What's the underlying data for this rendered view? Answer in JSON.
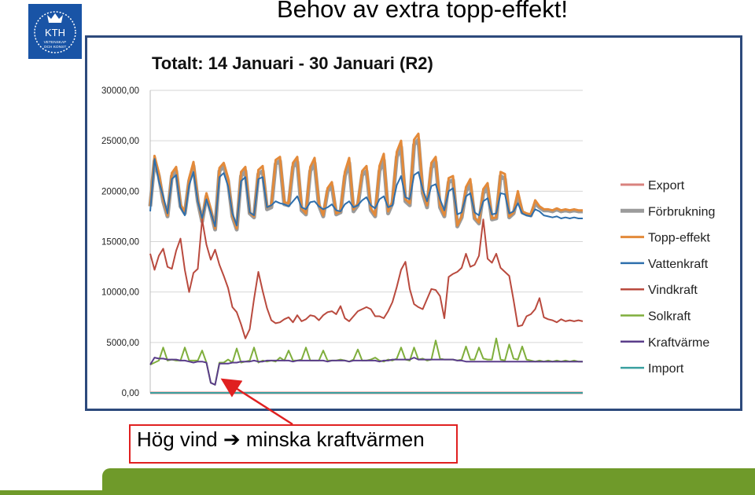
{
  "header": {
    "title": "Behov av extra topp-effekt!",
    "logo_text": "KTH",
    "logo_subtext": [
      "VETENSKAP",
      "OCH KONST"
    ]
  },
  "callout": {
    "text_before": "Hög vind",
    "arrow_glyph": "➔",
    "text_after": "minska kraftvärmen"
  },
  "colors": {
    "brand_blue": "#1954a6",
    "frame_border": "#2d4a7c",
    "callout_border": "#e02020",
    "footer_green": "#6f9a2a"
  },
  "chart_data": {
    "type": "line",
    "title": "Totalt: 14 Januari  -  30 Januari (R2)",
    "xlabel": "",
    "ylabel": "",
    "ylim": [
      0,
      30000
    ],
    "yticks": [
      "0,00",
      "5000,00",
      "10000,00",
      "15000,00",
      "20000,00",
      "25000,00",
      "30000,00"
    ],
    "grid": true,
    "legend_position": "right",
    "x": [
      0,
      1,
      2,
      3,
      4,
      5,
      6,
      7,
      8,
      9,
      10,
      11,
      12,
      13,
      14,
      15,
      16,
      17,
      18,
      19,
      20,
      21,
      22,
      23,
      24,
      25,
      26,
      27,
      28,
      29,
      30,
      31,
      32,
      33,
      34,
      35,
      36,
      37,
      38,
      39,
      40,
      41,
      42,
      43,
      44,
      45,
      46,
      47,
      48,
      49,
      50,
      51,
      52,
      53,
      54,
      55,
      56,
      57,
      58,
      59,
      60,
      61,
      62,
      63,
      64,
      65,
      66,
      67,
      68,
      69,
      70,
      71,
      72,
      73,
      74,
      75,
      76,
      77,
      78,
      79,
      80,
      81,
      82,
      83,
      84,
      85,
      86,
      87,
      88,
      89,
      90,
      91,
      92,
      93,
      94,
      95,
      96,
      97,
      98,
      99,
      100
    ],
    "series": [
      {
        "name": "Export",
        "color": "#d9827e",
        "values": [
          0,
          0,
          0,
          0,
          0,
          0,
          0,
          0,
          0,
          0,
          0,
          0,
          0,
          0,
          0,
          0,
          0,
          0,
          0,
          0,
          0,
          0,
          0,
          0,
          0,
          0,
          0,
          0,
          0,
          0,
          0,
          0,
          0,
          0,
          0,
          0,
          0,
          0,
          0,
          0,
          0,
          0,
          0,
          0,
          0,
          0,
          0,
          0,
          0,
          0,
          0,
          0,
          0,
          0,
          0,
          0,
          0,
          0,
          0,
          0,
          0,
          0,
          0,
          0,
          0,
          0,
          0,
          0,
          0,
          0,
          0,
          0,
          0,
          0,
          0,
          0,
          0,
          0,
          0,
          0,
          0,
          0,
          0,
          0,
          0,
          0,
          0,
          0,
          0,
          0,
          0,
          0,
          0,
          0,
          0,
          0,
          0,
          0,
          0,
          0,
          0
        ]
      },
      {
        "name": "Förbrukning",
        "color": "#9b9b9b",
        "values": [
          18500,
          23000,
          21500,
          19000,
          17500,
          21500,
          22000,
          18500,
          17800,
          21000,
          22500,
          19000,
          17000,
          19500,
          18000,
          16200,
          22000,
          22500,
          21000,
          17500,
          16200,
          21500,
          22000,
          17800,
          17400,
          21700,
          22000,
          18200,
          18400,
          22700,
          23000,
          18700,
          18600,
          22400,
          22900,
          18100,
          17700,
          22000,
          22800,
          18600,
          17500,
          20000,
          20500,
          17700,
          17900,
          21500,
          22800,
          18000,
          18600,
          21600,
          22000,
          18100,
          17500,
          22000,
          23100,
          17800,
          18800,
          23400,
          24400,
          19000,
          18600,
          24600,
          25100,
          19800,
          18400,
          22300,
          22900,
          18400,
          17500,
          20900,
          21100,
          16500,
          17400,
          20000,
          20700,
          17300,
          16800,
          19800,
          20300,
          17200,
          17300,
          21500,
          21200,
          17400,
          17800,
          19600,
          17900,
          17700,
          17600,
          18800,
          18400,
          18100,
          18100,
          18000,
          18200,
          18000,
          18100,
          18000,
          18100,
          18000,
          18000
        ]
      },
      {
        "name": "Topp-effekt",
        "color": "#e38a3a",
        "values": [
          18500,
          23500,
          21800,
          19200,
          17600,
          21800,
          22400,
          18700,
          17900,
          21300,
          22900,
          19200,
          17100,
          19800,
          18200,
          16300,
          22300,
          22800,
          21300,
          17600,
          16300,
          21900,
          22400,
          17900,
          17500,
          22100,
          22500,
          18400,
          18600,
          23100,
          23400,
          18900,
          18800,
          22800,
          23400,
          18300,
          17800,
          22400,
          23300,
          18800,
          17600,
          20300,
          20900,
          17800,
          18000,
          21900,
          23300,
          18200,
          18800,
          22000,
          22500,
          18300,
          17600,
          22500,
          23700,
          18000,
          19000,
          23900,
          25000,
          19200,
          18800,
          25100,
          25700,
          20000,
          18600,
          22800,
          23400,
          18600,
          17600,
          21300,
          21500,
          16600,
          17500,
          20400,
          21200,
          17400,
          16900,
          20200,
          20800,
          17300,
          17400,
          21900,
          21700,
          17500,
          17900,
          20000,
          18000,
          17800,
          17700,
          19100,
          18500,
          18200,
          18200,
          18100,
          18300,
          18100,
          18200,
          18100,
          18200,
          18100,
          18100
        ]
      },
      {
        "name": "Vattenkraft",
        "color": "#2e6fad",
        "values": [
          18000,
          23200,
          21000,
          19500,
          17800,
          21200,
          21600,
          18400,
          17600,
          20600,
          21900,
          19000,
          17300,
          19200,
          17900,
          16500,
          21400,
          21800,
          20500,
          17800,
          16600,
          21000,
          21400,
          17900,
          17600,
          21200,
          21400,
          18400,
          18600,
          19000,
          18800,
          18700,
          18500,
          19000,
          19500,
          18400,
          18200,
          18900,
          19000,
          18500,
          18200,
          18400,
          18700,
          18100,
          18000,
          18700,
          19000,
          18400,
          18600,
          19100,
          19400,
          18600,
          18300,
          19200,
          19500,
          18400,
          18600,
          20600,
          21500,
          19400,
          19200,
          21600,
          21900,
          20200,
          19000,
          20500,
          20700,
          19200,
          18100,
          20000,
          20300,
          17700,
          17900,
          19500,
          19800,
          17900,
          17600,
          19000,
          19300,
          17700,
          17800,
          19800,
          19700,
          17800,
          18000,
          18800,
          17800,
          17600,
          17500,
          18200,
          18000,
          17600,
          17500,
          17400,
          17500,
          17300,
          17400,
          17300,
          17400,
          17300,
          17300
        ]
      },
      {
        "name": "Vindkraft",
        "color": "#b94a3e",
        "values": [
          13800,
          12200,
          13600,
          14300,
          12500,
          12300,
          14100,
          15300,
          12200,
          10000,
          11900,
          12300,
          17200,
          14700,
          13200,
          14200,
          12700,
          11600,
          10400,
          8500,
          8000,
          6800,
          5400,
          6300,
          9300,
          12000,
          10100,
          8400,
          7200,
          6900,
          7000,
          7300,
          7500,
          7000,
          7700,
          7100,
          7300,
          7700,
          7600,
          7200,
          7700,
          8000,
          8100,
          7800,
          8600,
          7400,
          7100,
          7600,
          8100,
          8300,
          8500,
          8300,
          7600,
          7600,
          7400,
          8100,
          9000,
          10500,
          12200,
          13000,
          10300,
          8800,
          8500,
          8300,
          9300,
          10300,
          10200,
          9600,
          7400,
          11500,
          11800,
          12000,
          12400,
          13800,
          12500,
          12700,
          13600,
          17200,
          13300,
          12900,
          13800,
          12400,
          12000,
          11600,
          9200,
          6600,
          6700,
          7600,
          7800,
          8300,
          9400,
          7500,
          7300,
          7200,
          7000,
          7300,
          7100,
          7200,
          7100,
          7200,
          7100
        ]
      },
      {
        "name": "Solkraft",
        "color": "#7fae3c",
        "values": [
          2800,
          3000,
          3200,
          4500,
          3200,
          3300,
          3200,
          3200,
          4500,
          3200,
          3200,
          3200,
          4200,
          3000,
          1000,
          800,
          3000,
          3000,
          3300,
          3000,
          4400,
          3000,
          3100,
          3200,
          4500,
          3000,
          3200,
          3100,
          3200,
          3100,
          3500,
          3200,
          4200,
          3200,
          3200,
          3300,
          4500,
          3200,
          3200,
          3200,
          4200,
          3200,
          3200,
          3200,
          3300,
          3200,
          3100,
          3300,
          4300,
          3200,
          3200,
          3300,
          3500,
          3200,
          3100,
          3300,
          3200,
          3400,
          4500,
          3300,
          3200,
          4500,
          3300,
          3400,
          3200,
          3300,
          5200,
          3400,
          3300,
          3300,
          3300,
          3200,
          3300,
          4600,
          3300,
          3300,
          4500,
          3400,
          3300,
          3300,
          5400,
          3300,
          3200,
          4800,
          3400,
          3300,
          4600,
          3300,
          3200,
          3100,
          3200,
          3100,
          3200,
          3100,
          3200,
          3100,
          3200,
          3100,
          3200,
          3100,
          3100
        ]
      },
      {
        "name": "Kraftvärme",
        "color": "#5a3d8a",
        "values": [
          2800,
          3500,
          3400,
          3400,
          3300,
          3300,
          3300,
          3200,
          3200,
          3100,
          3000,
          3100,
          3100,
          3000,
          1000,
          800,
          2900,
          2900,
          2900,
          3000,
          3000,
          3100,
          3100,
          3100,
          3200,
          3100,
          3100,
          3200,
          3200,
          3200,
          3200,
          3200,
          3200,
          3100,
          3200,
          3200,
          3200,
          3200,
          3200,
          3200,
          3200,
          3100,
          3200,
          3200,
          3200,
          3200,
          3100,
          3200,
          3200,
          3200,
          3200,
          3200,
          3200,
          3100,
          3200,
          3200,
          3300,
          3300,
          3300,
          3300,
          3300,
          3500,
          3300,
          3300,
          3300,
          3300,
          3300,
          3300,
          3300,
          3300,
          3300,
          3200,
          3200,
          3100,
          3100,
          3100,
          3100,
          3100,
          3100,
          3100,
          3100,
          3100,
          3100,
          3100,
          3100,
          3100,
          3100,
          3100,
          3100,
          3100,
          3100,
          3100,
          3100,
          3100,
          3100,
          3100,
          3100,
          3100,
          3100,
          3100,
          3100
        ]
      },
      {
        "name": "Import",
        "color": "#3aa0a0",
        "values": [
          0,
          0,
          0,
          0,
          0,
          0,
          0,
          0,
          0,
          0,
          0,
          0,
          0,
          0,
          0,
          0,
          0,
          0,
          0,
          0,
          0,
          0,
          0,
          0,
          0,
          0,
          0,
          0,
          0,
          0,
          0,
          0,
          0,
          0,
          0,
          0,
          0,
          0,
          0,
          0,
          0,
          0,
          0,
          0,
          0,
          0,
          0,
          0,
          0,
          0,
          0,
          0,
          0,
          0,
          0,
          0,
          0,
          0,
          0,
          0,
          0,
          0,
          0,
          0,
          0,
          0,
          0,
          0,
          0,
          0,
          0,
          0,
          0,
          0,
          0,
          0,
          0,
          0,
          0,
          0,
          0,
          0,
          0,
          0,
          0,
          0,
          0,
          0,
          0,
          0,
          0,
          0,
          0,
          0,
          0,
          0,
          0,
          0,
          0,
          0,
          0
        ]
      }
    ]
  }
}
